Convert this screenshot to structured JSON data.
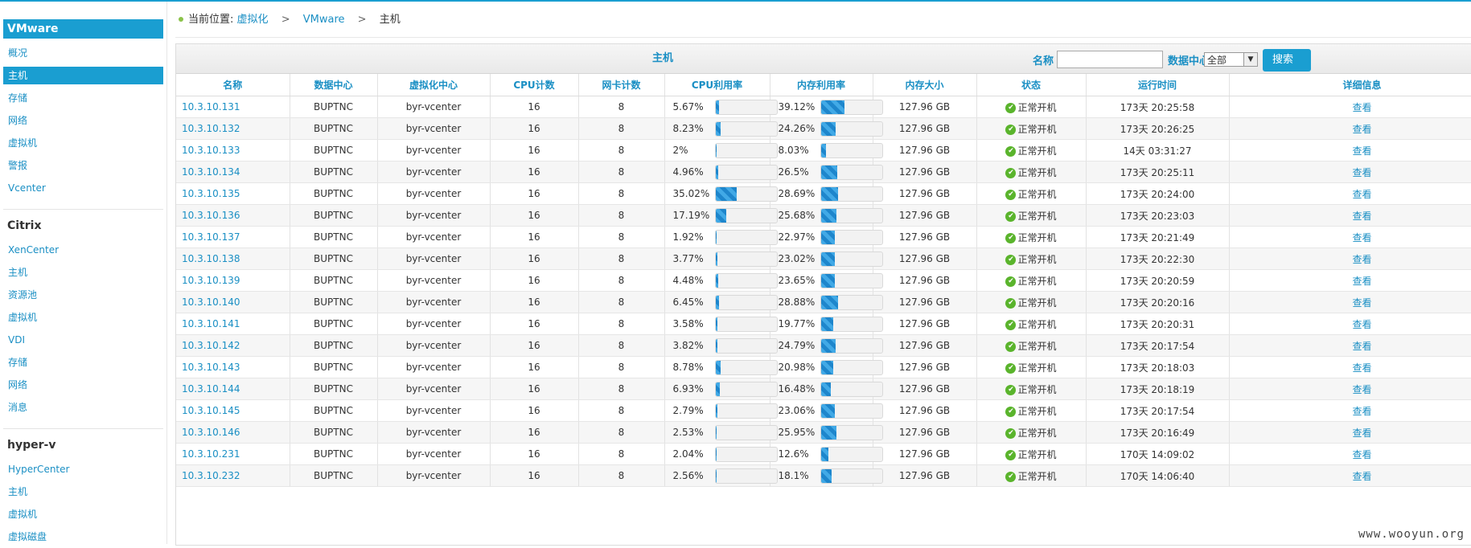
{
  "sidebar": {
    "sections": [
      {
        "title": "VMware",
        "items": [
          "概况",
          "主机",
          "存储",
          "网络",
          "虚拟机",
          "警报",
          "Vcenter"
        ],
        "active": 1
      },
      {
        "title": "Citrix",
        "items": [
          "XenCenter",
          "主机",
          "资源池",
          "虚拟机",
          "VDI",
          "存储",
          "网络",
          "消息"
        ]
      },
      {
        "title": "hyper-v",
        "items": [
          "HyperCenter",
          "主机",
          "虚拟机",
          "虚拟磁盘"
        ]
      }
    ]
  },
  "breadcrumb": {
    "prefix": "当前位置:",
    "level1": "虚拟化",
    "level2": "VMware",
    "level3": "主机",
    "separator": ">"
  },
  "panel": {
    "title": "主机",
    "filter_name_label": "名称",
    "filter_name_value": "",
    "filter_dc_label": "数据中心",
    "filter_dc_selected": "全部",
    "search_button": "搜索"
  },
  "table": {
    "columns": [
      "名称",
      "数据中心",
      "虚拟化中心",
      "CPU计数",
      "网卡计数",
      "CPU利用率",
      "内存利用率",
      "内存大小",
      "状态",
      "运行时间",
      "详细信息"
    ],
    "rows": [
      {
        "name": "10.3.10.131",
        "dc": "BUPTNC",
        "vc": "byr-vcenter",
        "cpu": "16",
        "nic": "8",
        "cpu_pct": "5.67%",
        "cpu_v": 5.67,
        "mem_pct": "39.12%",
        "mem_v": 39.12,
        "mem": "127.96 GB",
        "status": "正常开机",
        "uptime": "173天 20:25:58",
        "detail": "查看"
      },
      {
        "name": "10.3.10.132",
        "dc": "BUPTNC",
        "vc": "byr-vcenter",
        "cpu": "16",
        "nic": "8",
        "cpu_pct": "8.23%",
        "cpu_v": 8.23,
        "mem_pct": "24.26%",
        "mem_v": 24.26,
        "mem": "127.96 GB",
        "status": "正常开机",
        "uptime": "173天 20:26:25",
        "detail": "查看"
      },
      {
        "name": "10.3.10.133",
        "dc": "BUPTNC",
        "vc": "byr-vcenter",
        "cpu": "16",
        "nic": "8",
        "cpu_pct": "2%",
        "cpu_v": 2,
        "mem_pct": "8.03%",
        "mem_v": 8.03,
        "mem": "127.96 GB",
        "status": "正常开机",
        "uptime": "14天 03:31:27",
        "detail": "查看"
      },
      {
        "name": "10.3.10.134",
        "dc": "BUPTNC",
        "vc": "byr-vcenter",
        "cpu": "16",
        "nic": "8",
        "cpu_pct": "4.96%",
        "cpu_v": 4.96,
        "mem_pct": "26.5%",
        "mem_v": 26.5,
        "mem": "127.96 GB",
        "status": "正常开机",
        "uptime": "173天 20:25:11",
        "detail": "查看"
      },
      {
        "name": "10.3.10.135",
        "dc": "BUPTNC",
        "vc": "byr-vcenter",
        "cpu": "16",
        "nic": "8",
        "cpu_pct": "35.02%",
        "cpu_v": 35.02,
        "mem_pct": "28.69%",
        "mem_v": 28.69,
        "mem": "127.96 GB",
        "status": "正常开机",
        "uptime": "173天 20:24:00",
        "detail": "查看"
      },
      {
        "name": "10.3.10.136",
        "dc": "BUPTNC",
        "vc": "byr-vcenter",
        "cpu": "16",
        "nic": "8",
        "cpu_pct": "17.19%",
        "cpu_v": 17.19,
        "mem_pct": "25.68%",
        "mem_v": 25.68,
        "mem": "127.96 GB",
        "status": "正常开机",
        "uptime": "173天 20:23:03",
        "detail": "查看"
      },
      {
        "name": "10.3.10.137",
        "dc": "BUPTNC",
        "vc": "byr-vcenter",
        "cpu": "16",
        "nic": "8",
        "cpu_pct": "1.92%",
        "cpu_v": 1.92,
        "mem_pct": "22.97%",
        "mem_v": 22.97,
        "mem": "127.96 GB",
        "status": "正常开机",
        "uptime": "173天 20:21:49",
        "detail": "查看"
      },
      {
        "name": "10.3.10.138",
        "dc": "BUPTNC",
        "vc": "byr-vcenter",
        "cpu": "16",
        "nic": "8",
        "cpu_pct": "3.77%",
        "cpu_v": 3.77,
        "mem_pct": "23.02%",
        "mem_v": 23.02,
        "mem": "127.96 GB",
        "status": "正常开机",
        "uptime": "173天 20:22:30",
        "detail": "查看"
      },
      {
        "name": "10.3.10.139",
        "dc": "BUPTNC",
        "vc": "byr-vcenter",
        "cpu": "16",
        "nic": "8",
        "cpu_pct": "4.48%",
        "cpu_v": 4.48,
        "mem_pct": "23.65%",
        "mem_v": 23.65,
        "mem": "127.96 GB",
        "status": "正常开机",
        "uptime": "173天 20:20:59",
        "detail": "查看"
      },
      {
        "name": "10.3.10.140",
        "dc": "BUPTNC",
        "vc": "byr-vcenter",
        "cpu": "16",
        "nic": "8",
        "cpu_pct": "6.45%",
        "cpu_v": 6.45,
        "mem_pct": "28.88%",
        "mem_v": 28.88,
        "mem": "127.96 GB",
        "status": "正常开机",
        "uptime": "173天 20:20:16",
        "detail": "查看"
      },
      {
        "name": "10.3.10.141",
        "dc": "BUPTNC",
        "vc": "byr-vcenter",
        "cpu": "16",
        "nic": "8",
        "cpu_pct": "3.58%",
        "cpu_v": 3.58,
        "mem_pct": "19.77%",
        "mem_v": 19.77,
        "mem": "127.96 GB",
        "status": "正常开机",
        "uptime": "173天 20:20:31",
        "detail": "查看"
      },
      {
        "name": "10.3.10.142",
        "dc": "BUPTNC",
        "vc": "byr-vcenter",
        "cpu": "16",
        "nic": "8",
        "cpu_pct": "3.82%",
        "cpu_v": 3.82,
        "mem_pct": "24.79%",
        "mem_v": 24.79,
        "mem": "127.96 GB",
        "status": "正常开机",
        "uptime": "173天 20:17:54",
        "detail": "查看"
      },
      {
        "name": "10.3.10.143",
        "dc": "BUPTNC",
        "vc": "byr-vcenter",
        "cpu": "16",
        "nic": "8",
        "cpu_pct": "8.78%",
        "cpu_v": 8.78,
        "mem_pct": "20.98%",
        "mem_v": 20.98,
        "mem": "127.96 GB",
        "status": "正常开机",
        "uptime": "173天 20:18:03",
        "detail": "查看"
      },
      {
        "name": "10.3.10.144",
        "dc": "BUPTNC",
        "vc": "byr-vcenter",
        "cpu": "16",
        "nic": "8",
        "cpu_pct": "6.93%",
        "cpu_v": 6.93,
        "mem_pct": "16.48%",
        "mem_v": 16.48,
        "mem": "127.96 GB",
        "status": "正常开机",
        "uptime": "173天 20:18:19",
        "detail": "查看"
      },
      {
        "name": "10.3.10.145",
        "dc": "BUPTNC",
        "vc": "byr-vcenter",
        "cpu": "16",
        "nic": "8",
        "cpu_pct": "2.79%",
        "cpu_v": 2.79,
        "mem_pct": "23.06%",
        "mem_v": 23.06,
        "mem": "127.96 GB",
        "status": "正常开机",
        "uptime": "173天 20:17:54",
        "detail": "查看"
      },
      {
        "name": "10.3.10.146",
        "dc": "BUPTNC",
        "vc": "byr-vcenter",
        "cpu": "16",
        "nic": "8",
        "cpu_pct": "2.53%",
        "cpu_v": 2.53,
        "mem_pct": "25.95%",
        "mem_v": 25.95,
        "mem": "127.96 GB",
        "status": "正常开机",
        "uptime": "173天 20:16:49",
        "detail": "查看"
      },
      {
        "name": "10.3.10.231",
        "dc": "BUPTNC",
        "vc": "byr-vcenter",
        "cpu": "16",
        "nic": "8",
        "cpu_pct": "2.04%",
        "cpu_v": 2.04,
        "mem_pct": "12.6%",
        "mem_v": 12.6,
        "mem": "127.96 GB",
        "status": "正常开机",
        "uptime": "170天 14:09:02",
        "detail": "查看"
      },
      {
        "name": "10.3.10.232",
        "dc": "BUPTNC",
        "vc": "byr-vcenter",
        "cpu": "16",
        "nic": "8",
        "cpu_pct": "2.56%",
        "cpu_v": 2.56,
        "mem_pct": "18.1%",
        "mem_v": 18.1,
        "mem": "127.96 GB",
        "status": "正常开机",
        "uptime": "170天 14:06:40",
        "detail": "查看"
      }
    ]
  },
  "icons": {
    "status": "check-circle-icon",
    "dropdown": "chevron-down-icon"
  },
  "colors": {
    "accent": "#1a9ed1",
    "link": "#1a8fc4",
    "status_ok": "#5ab42c"
  },
  "watermark": "www.wooyun.org"
}
